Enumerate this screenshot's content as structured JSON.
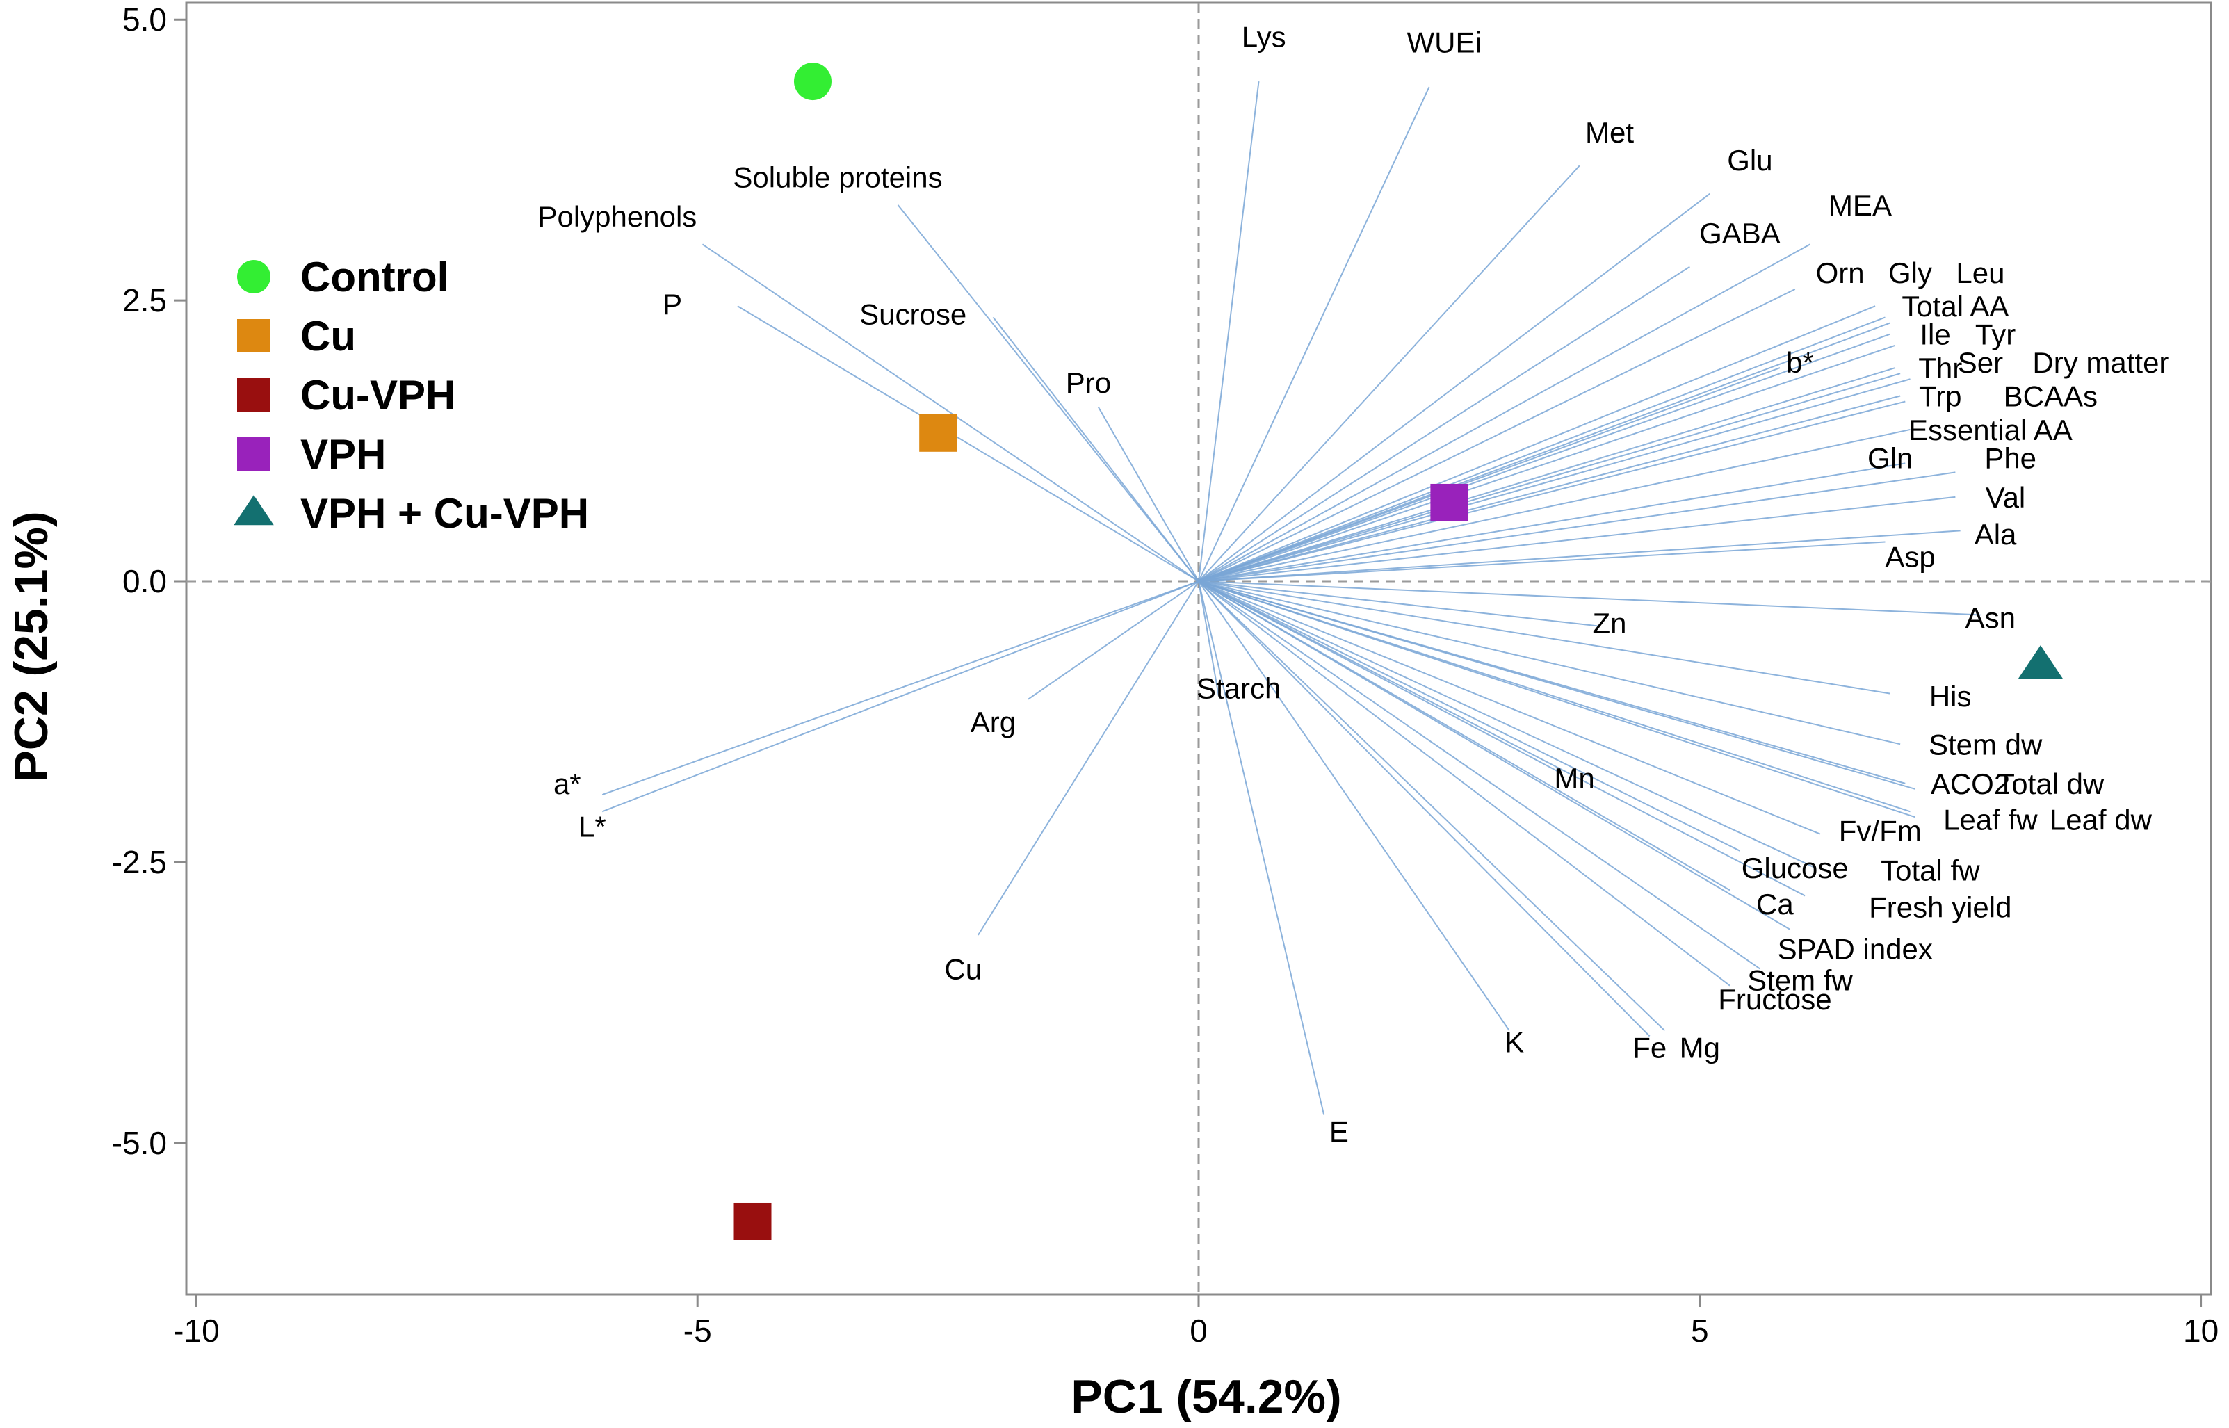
{
  "chart_data": {
    "type": "scatter",
    "subtype": "pca-biplot",
    "xlabel": "PC1 (54.2%)",
    "ylabel": "PC2 (25.1%)",
    "xlim": [
      -10.1,
      10.1
    ],
    "ylim": [
      -6.35,
      5.15
    ],
    "x_ticks": [
      {
        "value": -10,
        "label": "-10"
      },
      {
        "value": -5,
        "label": "-5"
      },
      {
        "value": 0,
        "label": "0"
      },
      {
        "value": 5,
        "label": "5"
      },
      {
        "value": 10,
        "label": "10"
      }
    ],
    "y_ticks": [
      {
        "value": 5,
        "label": "5.0"
      },
      {
        "value": 2.5,
        "label": "2.5"
      },
      {
        "value": 0,
        "label": "0.0"
      },
      {
        "value": -2.5,
        "label": "-2.5"
      },
      {
        "value": -5,
        "label": "-5.0"
      }
    ],
    "legend_position": "left",
    "series": [
      {
        "name": "Control",
        "marker": "circle",
        "color": "#33ee33",
        "x": -3.85,
        "y": 4.45
      },
      {
        "name": "Cu",
        "marker": "square",
        "color": "#dd8811",
        "x": -2.6,
        "y": 1.32
      },
      {
        "name": "Cu-VPH",
        "marker": "square",
        "color": "#990f0f",
        "x": -4.45,
        "y": -5.7
      },
      {
        "name": "VPH",
        "marker": "square",
        "color": "#9922bb",
        "x": 2.5,
        "y": 0.7
      },
      {
        "name": "VPH + Cu-VPH",
        "marker": "triangle",
        "color": "#137070",
        "x": 8.4,
        "y": -0.75
      }
    ],
    "loadings": [
      {
        "name": "Lys",
        "x": 0.6,
        "y": 4.45,
        "lx": 0.65,
        "ly": 4.85
      },
      {
        "name": "WUEi",
        "x": 2.3,
        "y": 4.4,
        "lx": 2.45,
        "ly": 4.8
      },
      {
        "name": "Met",
        "x": 3.8,
        "y": 3.7,
        "lx": 4.1,
        "ly": 4.0
      },
      {
        "name": "Glu",
        "x": 5.1,
        "y": 3.45,
        "lx": 5.5,
        "ly": 3.75
      },
      {
        "name": "MEA",
        "x": 6.1,
        "y": 3.0,
        "lx": 6.6,
        "ly": 3.35
      },
      {
        "name": "GABA",
        "x": 4.9,
        "y": 2.8,
        "lx": 5.4,
        "ly": 3.1
      },
      {
        "name": "Orn",
        "x": 5.95,
        "y": 2.6,
        "lx": 6.4,
        "ly": 2.75
      },
      {
        "name": "Gly",
        "x": 6.75,
        "y": 2.45,
        "lx": 7.1,
        "ly": 2.75
      },
      {
        "name": "Leu",
        "x": 6.85,
        "y": 2.35,
        "lx": 7.8,
        "ly": 2.75
      },
      {
        "name": "Total AA",
        "x": 6.9,
        "y": 2.3,
        "lx": 7.55,
        "ly": 2.45
      },
      {
        "name": "Ile",
        "x": 6.9,
        "y": 2.2,
        "lx": 7.35,
        "ly": 2.2
      },
      {
        "name": "Tyr",
        "x": 6.95,
        "y": 2.1,
        "lx": 7.95,
        "ly": 2.2
      },
      {
        "name": "b*",
        "x": 5.8,
        "y": 1.9,
        "lx": 6.0,
        "ly": 1.95
      },
      {
        "name": "Thr",
        "x": 6.95,
        "y": 1.9,
        "lx": 7.4,
        "ly": 1.9
      },
      {
        "name": "Ser",
        "x": 7.0,
        "y": 1.85,
        "lx": 7.8,
        "ly": 1.95
      },
      {
        "name": "Dry matter",
        "x": 7.1,
        "y": 1.8,
        "lx": 9.0,
        "ly": 1.95
      },
      {
        "name": "Trp",
        "x": 7.0,
        "y": 1.65,
        "lx": 7.4,
        "ly": 1.65
      },
      {
        "name": "BCAAs",
        "x": 7.05,
        "y": 1.6,
        "lx": 8.5,
        "ly": 1.65
      },
      {
        "name": "Essential AA",
        "x": 7.1,
        "y": 1.35,
        "lx": 7.9,
        "ly": 1.35
      },
      {
        "name": "Gln",
        "x": 7.05,
        "y": 1.05,
        "lx": 6.9,
        "ly": 1.1
      },
      {
        "name": "Phe",
        "x": 7.55,
        "y": 0.97,
        "lx": 8.1,
        "ly": 1.1
      },
      {
        "name": "Val",
        "x": 7.55,
        "y": 0.75,
        "lx": 8.05,
        "ly": 0.75
      },
      {
        "name": "Ala",
        "x": 7.6,
        "y": 0.45,
        "lx": 7.95,
        "ly": 0.42
      },
      {
        "name": "Asp",
        "x": 6.85,
        "y": 0.35,
        "lx": 7.1,
        "ly": 0.22
      },
      {
        "name": "Asn",
        "x": 7.8,
        "y": -0.3,
        "lx": 7.9,
        "ly": -0.32
      },
      {
        "name": "Zn",
        "x": 4.0,
        "y": -0.4,
        "lx": 4.1,
        "ly": -0.37
      },
      {
        "name": "His",
        "x": 6.9,
        "y": -1.0,
        "lx": 7.5,
        "ly": -1.02
      },
      {
        "name": "Stem dw",
        "x": 7.0,
        "y": -1.45,
        "lx": 7.85,
        "ly": -1.45
      },
      {
        "name": "ACO2",
        "x": 7.05,
        "y": -1.8,
        "lx": 7.7,
        "ly": -1.8
      },
      {
        "name": "Total dw",
        "x": 7.15,
        "y": -1.85,
        "lx": 8.5,
        "ly": -1.8
      },
      {
        "name": "Leaf fw",
        "x": 7.1,
        "y": -2.05,
        "lx": 7.9,
        "ly": -2.12
      },
      {
        "name": "Leaf dw",
        "x": 7.15,
        "y": -2.1,
        "lx": 9.0,
        "ly": -2.12
      },
      {
        "name": "Mn",
        "x": 3.6,
        "y": -1.7,
        "lx": 3.75,
        "ly": -1.75
      },
      {
        "name": "Fv/Fm",
        "x": 6.2,
        "y": -2.25,
        "lx": 6.8,
        "ly": -2.22
      },
      {
        "name": "Glucose",
        "x": 5.4,
        "y": -2.4,
        "lx": 5.95,
        "ly": -2.55
      },
      {
        "name": "Total fw",
        "x": 6.15,
        "y": -2.55,
        "lx": 7.3,
        "ly": -2.57
      },
      {
        "name": "Ca",
        "x": 5.3,
        "y": -2.75,
        "lx": 5.75,
        "ly": -2.87
      },
      {
        "name": "Fresh yield",
        "x": 6.05,
        "y": -2.8,
        "lx": 7.4,
        "ly": -2.9
      },
      {
        "name": "SPAD index",
        "x": 5.9,
        "y": -3.1,
        "lx": 6.55,
        "ly": -3.27
      },
      {
        "name": "Stem fw",
        "x": 5.6,
        "y": -3.45,
        "lx": 6.0,
        "ly": -3.55
      },
      {
        "name": "Fructose",
        "x": 5.3,
        "y": -3.6,
        "lx": 5.75,
        "ly": -3.72
      },
      {
        "name": "K",
        "x": 3.1,
        "y": -4.0,
        "lx": 3.15,
        "ly": -4.1
      },
      {
        "name": "Fe",
        "x": 4.5,
        "y": -4.05,
        "lx": 4.5,
        "ly": -4.15
      },
      {
        "name": "Mg",
        "x": 4.65,
        "y": -4.0,
        "lx": 5.0,
        "ly": -4.15
      },
      {
        "name": "Starch",
        "x": 0.2,
        "y": -1.02,
        "lx": 0.4,
        "ly": -0.95
      },
      {
        "name": "E",
        "x": 1.25,
        "y": -4.75,
        "lx": 1.4,
        "ly": -4.9
      },
      {
        "name": "Arg",
        "x": -1.7,
        "y": -1.05,
        "lx": -2.05,
        "ly": -1.25
      },
      {
        "name": "Cu",
        "x": -2.2,
        "y": -3.15,
        "lx": -2.35,
        "ly": -3.45
      },
      {
        "name": "a*",
        "x": -5.95,
        "y": -1.9,
        "lx": -6.3,
        "ly": -1.8
      },
      {
        "name": "L*",
        "x": -5.95,
        "y": -2.05,
        "lx": -6.05,
        "ly": -2.18
      },
      {
        "name": "Soluble proteins",
        "x": -3.0,
        "y": 3.35,
        "lx": -3.6,
        "ly": 3.6
      },
      {
        "name": "Polyphenols",
        "x": -4.95,
        "y": 3.0,
        "lx": -5.8,
        "ly": 3.25
      },
      {
        "name": "P",
        "x": -4.6,
        "y": 2.45,
        "lx": -5.25,
        "ly": 2.47
      },
      {
        "name": "Sucrose",
        "x": -2.05,
        "y": 2.35,
        "lx": -2.85,
        "ly": 2.38
      },
      {
        "name": "Pro",
        "x": -1.0,
        "y": 1.55,
        "lx": -1.1,
        "ly": 1.77
      }
    ]
  }
}
